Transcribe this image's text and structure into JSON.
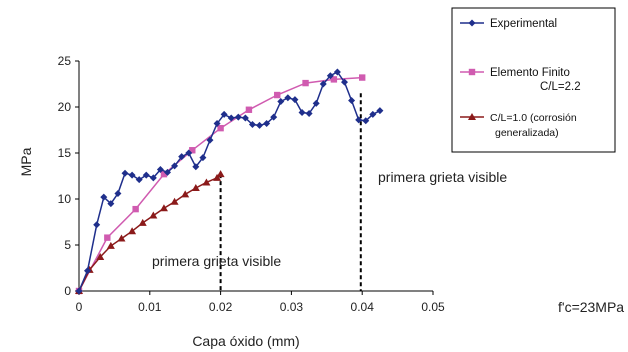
{
  "chart_data": {
    "type": "line",
    "xlabel": "Capa óxido (mm)",
    "ylabel": "MPa",
    "xlim": [
      0,
      0.05
    ],
    "ylim": [
      0,
      25
    ],
    "x_ticks": [
      "0",
      "0.01",
      "0.02",
      "0.03",
      "0.04",
      "0.05"
    ],
    "y_ticks": [
      "0",
      "5",
      "10",
      "15",
      "20",
      "25"
    ],
    "grid": false,
    "legend_position": "top-right",
    "colors": {
      "experimental": "#1f2f8c",
      "finito": "#d05bb0",
      "corrosion": "#8b1a1a"
    },
    "series": [
      {
        "name": "Experimental",
        "marker": "diamond",
        "x": [
          0,
          0.0012,
          0.0025,
          0.0035,
          0.0045,
          0.0055,
          0.0065,
          0.0075,
          0.0085,
          0.0095,
          0.0105,
          0.0115,
          0.0125,
          0.0135,
          0.0145,
          0.0155,
          0.0165,
          0.0175,
          0.0185,
          0.0195,
          0.0205,
          0.0215,
          0.0225,
          0.0235,
          0.0245,
          0.0255,
          0.0265,
          0.0275,
          0.0285,
          0.0295,
          0.0305,
          0.0315,
          0.0325,
          0.0335,
          0.0345,
          0.0355,
          0.0365,
          0.0375,
          0.0385,
          0.0395,
          0.0405,
          0.0415,
          0.0425
        ],
        "y": [
          0,
          2.2,
          7.2,
          10.2,
          9.5,
          10.6,
          12.8,
          12.6,
          12.1,
          12.6,
          12.3,
          13.2,
          12.9,
          13.6,
          14.6,
          15.0,
          13.5,
          14.5,
          16.4,
          18.2,
          19.2,
          18.8,
          18.9,
          18.8,
          18.1,
          18.0,
          18.2,
          18.9,
          20.6,
          21.0,
          20.8,
          19.4,
          19.3,
          20.4,
          22.5,
          23.4,
          23.8,
          22.7,
          20.7,
          18.6,
          18.5,
          19.2,
          19.6
        ]
      },
      {
        "name": "Elemento Finito",
        "marker": "square",
        "x": [
          0,
          0.004,
          0.008,
          0.012,
          0.016,
          0.02,
          0.024,
          0.028,
          0.032,
          0.036,
          0.04
        ],
        "y": [
          0,
          5.8,
          8.9,
          12.7,
          15.3,
          17.7,
          19.7,
          21.3,
          22.6,
          23.0,
          23.2
        ]
      },
      {
        "name": "C/L=1.0 (corrosión generalizada)",
        "marker": "triangle",
        "x": [
          0,
          0.0015,
          0.003,
          0.0045,
          0.006,
          0.0075,
          0.009,
          0.0105,
          0.012,
          0.0135,
          0.015,
          0.0165,
          0.018,
          0.0195,
          0.02
        ],
        "y": [
          0,
          2.3,
          3.7,
          4.9,
          5.7,
          6.5,
          7.4,
          8.2,
          9.0,
          9.7,
          10.5,
          11.2,
          11.8,
          12.3,
          12.7
        ]
      }
    ],
    "legend": {
      "experimental": "Experimental",
      "finito": "Elemento Finito",
      "finito_sub": "C/L=2.2",
      "corrosion_1": "C/L=1.0 (corrosión",
      "corrosion_2": "generalizada)"
    },
    "annotations": [
      {
        "text": "primera grieta visible",
        "x": 0.02
      },
      {
        "text": "primera grieta visible",
        "x": 0.04
      }
    ],
    "side_note": "f'c=23MPa"
  }
}
